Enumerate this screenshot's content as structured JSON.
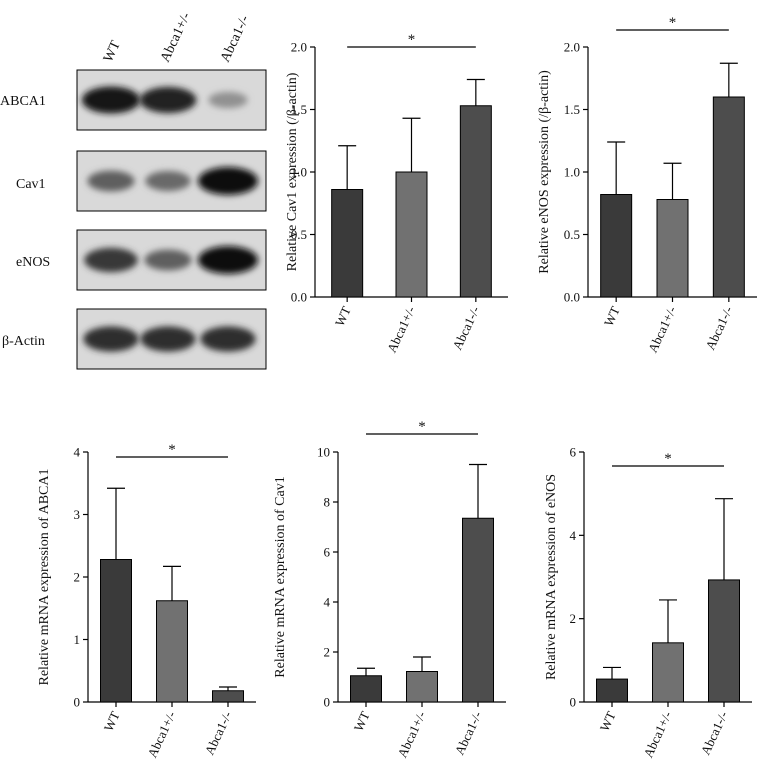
{
  "blot": {
    "lanes": [
      "WT",
      "Abca1+/-",
      "Abca1-/-"
    ],
    "rows": [
      {
        "label": "ABCA1",
        "intensities": [
          0.95,
          0.9,
          0.35
        ]
      },
      {
        "label": "Cav1",
        "intensities": [
          0.6,
          0.55,
          1.0
        ]
      },
      {
        "label": "eNOS",
        "intensities": [
          0.8,
          0.6,
          1.0
        ]
      },
      {
        "label": "β-Actin",
        "intensities": [
          0.85,
          0.85,
          0.85
        ]
      }
    ]
  },
  "chart_data": [
    {
      "type": "bar",
      "categories": [
        "WT",
        "Abca1+/-",
        "Abca1-/-"
      ],
      "values": [
        0.86,
        1.0,
        1.53
      ],
      "errors": [
        0.35,
        0.43,
        0.21
      ],
      "ylabel": "Relative Cav1 expression (/β-actin)",
      "ylim": [
        0,
        2.0
      ],
      "yticks": [
        "0.0",
        "0.5",
        "1.0",
        "1.5",
        "2.0"
      ],
      "significance": {
        "from": 0,
        "to": 2,
        "label": "*"
      },
      "colors": [
        "#3a3a3a",
        "#717171",
        "#4d4d4d"
      ]
    },
    {
      "type": "bar",
      "categories": [
        "WT",
        "Abca1+/-",
        "Abca1-/-"
      ],
      "values": [
        0.82,
        0.78,
        1.6
      ],
      "errors": [
        0.42,
        0.29,
        0.27
      ],
      "ylabel": "Relative eNOS expression (/β-actin)",
      "ylim": [
        0,
        2.0
      ],
      "yticks": [
        "0.0",
        "0.5",
        "1.0",
        "1.5",
        "2.0"
      ],
      "significance": {
        "from": 0,
        "to": 2,
        "label": "*"
      },
      "colors": [
        "#3a3a3a",
        "#717171",
        "#4d4d4d"
      ]
    },
    {
      "type": "bar",
      "categories": [
        "WT",
        "Abca1+/-",
        "Abca1-/-"
      ],
      "values": [
        2.28,
        1.62,
        0.18
      ],
      "errors": [
        1.14,
        0.55,
        0.06
      ],
      "ylabel": "Relative mRNA expression of ABCA1",
      "ylim": [
        0,
        4
      ],
      "yticks": [
        "0",
        "1",
        "2",
        "3",
        "4"
      ],
      "significance": {
        "from": 0,
        "to": 2,
        "label": "*"
      },
      "colors": [
        "#3a3a3a",
        "#717171",
        "#4d4d4d"
      ]
    },
    {
      "type": "bar",
      "categories": [
        "WT",
        "Abca1+/-",
        "Abca1-/-"
      ],
      "values": [
        1.05,
        1.22,
        7.35
      ],
      "errors": [
        0.3,
        0.58,
        2.15
      ],
      "ylabel": "Relative mRNA expression of Cav1",
      "ylim": [
        0,
        10
      ],
      "yticks": [
        "0",
        "2",
        "4",
        "6",
        "8",
        "10"
      ],
      "significance": {
        "from": 0,
        "to": 2,
        "label": "*"
      },
      "colors": [
        "#3a3a3a",
        "#717171",
        "#4d4d4d"
      ]
    },
    {
      "type": "bar",
      "categories": [
        "WT",
        "Abca1+/-",
        "Abca1-/-"
      ],
      "values": [
        0.55,
        1.42,
        2.93
      ],
      "errors": [
        0.28,
        1.03,
        1.95
      ],
      "ylabel": "Relative mRNA expression of eNOS",
      "ylim": [
        0,
        6
      ],
      "yticks": [
        "0",
        "2",
        "4",
        "6"
      ],
      "significance": {
        "from": 0,
        "to": 2,
        "label": "*"
      },
      "colors": [
        "#3a3a3a",
        "#717171",
        "#4d4d4d"
      ]
    }
  ]
}
